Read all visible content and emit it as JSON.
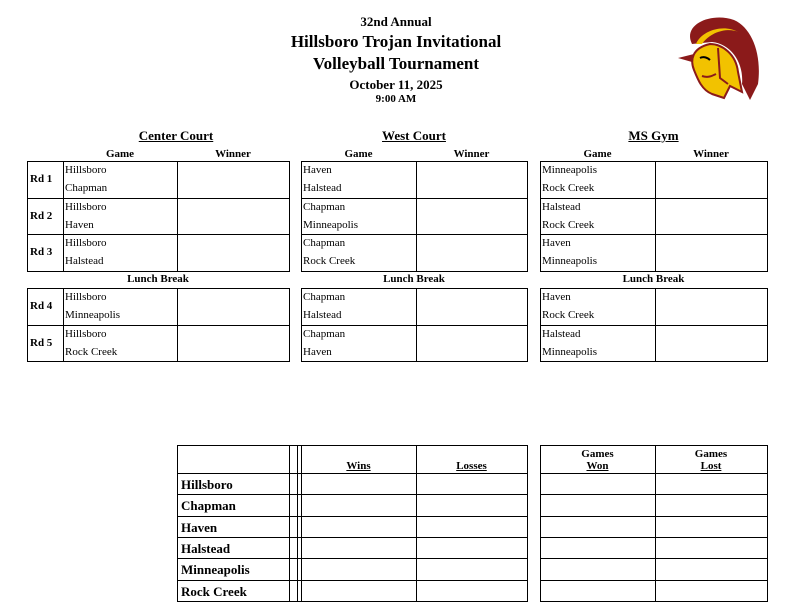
{
  "header": {
    "edition": "32nd Annual",
    "title_line1": "Hillsboro Trojan Invitational",
    "title_line2": "Volleyball Tournament",
    "date": "October 11, 2025",
    "time": "9:00 AM",
    "logo": "trojan-head-logo"
  },
  "columns": {
    "game": "Game",
    "winner": "Winner"
  },
  "lunch_label": "Lunch Break",
  "round_labels": [
    "Rd 1",
    "Rd 2",
    "Rd 3",
    "Rd 4",
    "Rd 5"
  ],
  "courts": [
    {
      "name": "Center Court",
      "games": [
        [
          "Hillsboro",
          "Chapman"
        ],
        [
          "Hillsboro",
          "Haven"
        ],
        [
          "Hillsboro",
          "Halstead"
        ],
        [
          "Hillsboro",
          "Minneapolis"
        ],
        [
          "Hillsboro",
          "Rock Creek"
        ]
      ]
    },
    {
      "name": "West Court",
      "games": [
        [
          "Haven",
          "Halstead"
        ],
        [
          "Chapman",
          "Minneapolis"
        ],
        [
          "Chapman",
          "Rock Creek"
        ],
        [
          "Chapman",
          "Halstead"
        ],
        [
          "Chapman",
          "Haven"
        ]
      ]
    },
    {
      "name": "MS Gym",
      "games": [
        [
          "Minneapolis",
          "Rock Creek"
        ],
        [
          "Halstead",
          "Rock Creek"
        ],
        [
          "Haven",
          "Minneapolis"
        ],
        [
          "Haven",
          "Rock Creek"
        ],
        [
          "Halstead",
          "Minneapolis"
        ]
      ]
    }
  ],
  "standings": {
    "wins": "Wins",
    "losses": "Losses",
    "games_won": [
      "Games",
      "Won"
    ],
    "games_lost": [
      "Games",
      "Lost"
    ],
    "teams": [
      "Hillsboro",
      "Chapman",
      "Haven",
      "Halstead",
      "Minneapolis",
      "Rock Creek"
    ]
  },
  "colors": {
    "logo_maroon": "#8B1A1A",
    "logo_gold": "#F2C200"
  }
}
